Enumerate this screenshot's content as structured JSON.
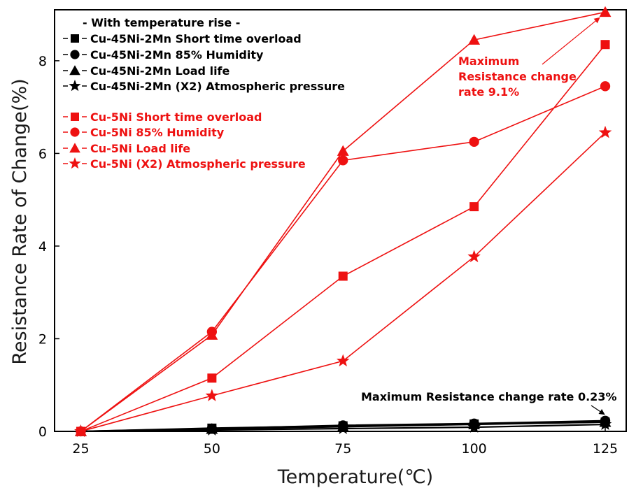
{
  "chart_data": {
    "type": "line",
    "xlabel": "Temperature(℃)",
    "ylabel": "Resistance Rate of Change(%)",
    "x": [
      25,
      50,
      75,
      100,
      125
    ],
    "xticks": [
      "25",
      "50",
      "75",
      "100",
      "125"
    ],
    "yticks": [
      "0",
      "2",
      "4",
      "6",
      "8"
    ],
    "xlim": [
      20,
      129
    ],
    "ylim": [
      0,
      9.1
    ],
    "grid": false,
    "legend": {
      "placement": "top-left",
      "heading": "- With temperature rise -",
      "entries": [
        {
          "label": "Cu-45Ni-2Mn Short time overload",
          "series": 0
        },
        {
          "label": "Cu-45Ni-2Mn 85% Humidity",
          "series": 1
        },
        {
          "label": "Cu-45Ni-2Mn Load life",
          "series": 2
        },
        {
          "label": "Cu-45Ni-2Mn (X2) Atmospheric pressure",
          "series": 3
        },
        {
          "label": "Cu-5Ni Short time overload",
          "series": 4
        },
        {
          "label": "Cu-5Ni 85% Humidity",
          "series": 5
        },
        {
          "label": "Cu-5Ni Load life",
          "series": 6
        },
        {
          "label": "Cu-5Ni (X2) Atmospheric pressure",
          "series": 7
        }
      ]
    },
    "series": [
      {
        "name": "Cu-45Ni-2Mn Short time overload",
        "color": "#000000",
        "marker": "square",
        "values": [
          0,
          0.07,
          0.12,
          0.16,
          0.2
        ]
      },
      {
        "name": "Cu-45Ni-2Mn 85% Humidity",
        "color": "#000000",
        "marker": "circle",
        "values": [
          0,
          0.06,
          0.13,
          0.17,
          0.23
        ]
      },
      {
        "name": "Cu-45Ni-2Mn Load life",
        "color": "#000000",
        "marker": "triangle",
        "values": [
          0,
          0.05,
          0.1,
          0.15,
          0.2
        ]
      },
      {
        "name": "Cu-45Ni-2Mn (X2) Atmospheric pressure",
        "color": "#000000",
        "marker": "star",
        "values": [
          0,
          0.03,
          0.06,
          0.09,
          0.15
        ]
      },
      {
        "name": "Cu-5Ni Short time overload",
        "color": "#ee1111",
        "marker": "square",
        "values": [
          0,
          1.15,
          3.35,
          4.85,
          8.35
        ]
      },
      {
        "name": "Cu-5Ni 85% Humidity",
        "color": "#ee1111",
        "marker": "circle",
        "values": [
          0,
          2.15,
          5.85,
          6.25,
          7.45
        ]
      },
      {
        "name": "Cu-5Ni Load life",
        "color": "#ee1111",
        "marker": "triangle",
        "values": [
          0,
          2.08,
          6.05,
          8.45,
          9.05
        ]
      },
      {
        "name": "Cu-5Ni (X2) Atmospheric pressure",
        "color": "#ee1111",
        "marker": "star",
        "values": [
          0,
          0.77,
          1.52,
          3.77,
          6.45
        ]
      }
    ],
    "annotations": [
      {
        "text_lines": [
          "Maximum",
          "Resistance change",
          "rate 9.1%"
        ],
        "color": "#ee1111",
        "points_to": {
          "x": 125,
          "y": 9.05
        }
      },
      {
        "text_lines": [
          "Maximum Resistance change rate 0.23%"
        ],
        "color": "#000000",
        "points_to": {
          "x": 125,
          "y": 0.23
        }
      }
    ]
  }
}
